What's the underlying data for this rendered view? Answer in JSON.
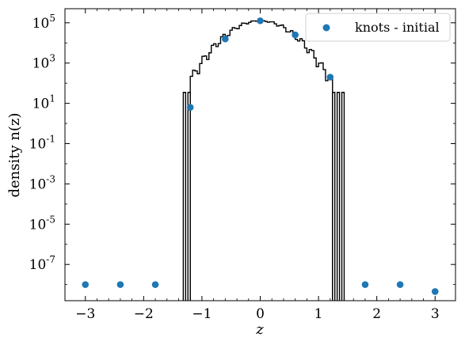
{
  "chart_data": {
    "type": "scatter",
    "xlabel": "z",
    "ylabel": "density n(z)",
    "xlim": [
      -3.35,
      3.35
    ],
    "ylim_log10": [
      -8.8,
      5.7
    ],
    "yscale": "log",
    "grid": false,
    "legend_position": "top-right",
    "x_ticks": [
      {
        "value": -3,
        "label": "−3"
      },
      {
        "value": -2,
        "label": "−2"
      },
      {
        "value": -1,
        "label": "−1"
      },
      {
        "value": 0,
        "label": "0"
      },
      {
        "value": 1,
        "label": "1"
      },
      {
        "value": 2,
        "label": "2"
      },
      {
        "value": 3,
        "label": "3"
      }
    ],
    "y_ticks": [
      {
        "exp": 5,
        "label": "10",
        "sup": "5"
      },
      {
        "exp": 3,
        "label": "10",
        "sup": "3"
      },
      {
        "exp": 1,
        "label": "10",
        "sup": "1"
      },
      {
        "exp": -1,
        "label": "10",
        "sup": "-1"
      },
      {
        "exp": -3,
        "label": "10",
        "sup": "-3"
      },
      {
        "exp": -5,
        "label": "10",
        "sup": "-5"
      },
      {
        "exp": -7,
        "label": "10",
        "sup": "-7"
      }
    ],
    "series": [
      {
        "name": "knots - initial",
        "kind": "scatter",
        "color": "#1f77b4",
        "points": [
          {
            "x": -3.0,
            "y": 1e-08
          },
          {
            "x": -2.4,
            "y": 1e-08
          },
          {
            "x": -1.8,
            "y": 1e-08
          },
          {
            "x": -1.2,
            "y": 6.3
          },
          {
            "x": -0.6,
            "y": 15800
          },
          {
            "x": 0.0,
            "y": 126000
          },
          {
            "x": 0.6,
            "y": 25100
          },
          {
            "x": 1.2,
            "y": 200
          },
          {
            "x": 1.8,
            "y": 1e-08
          },
          {
            "x": 2.4,
            "y": 1e-08
          },
          {
            "x": 3.0,
            "y": 4.5e-09
          }
        ]
      },
      {
        "kind": "histogram-step",
        "color": "#000000",
        "bin_width": 0.04,
        "center_peak": 126000,
        "gaussian_sigma": 0.327,
        "edge_bins": [
          {
            "x0": -1.32,
            "x1": -1.28,
            "y": 35
          },
          {
            "x0": -1.24,
            "x1": -1.2,
            "y": 35
          },
          {
            "x0": 1.24,
            "x1": 1.28,
            "y": 35
          },
          {
            "x0": 1.32,
            "x1": 1.36,
            "y": 35
          },
          {
            "x0": 1.4,
            "x1": 1.44,
            "y": 35
          }
        ]
      }
    ]
  }
}
